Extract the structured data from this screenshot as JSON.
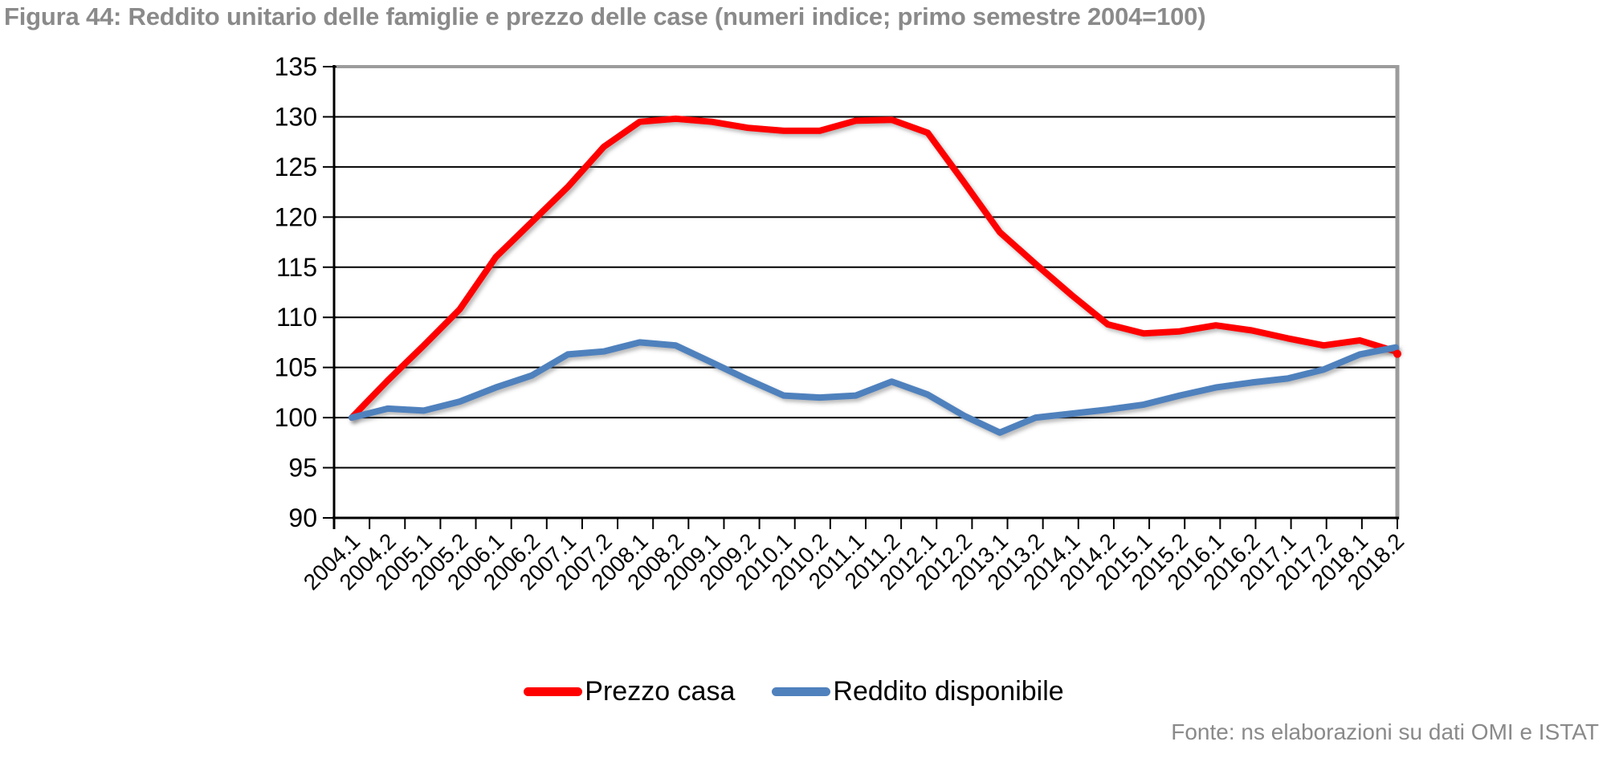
{
  "page": {
    "title": "Figura 44: Reddito unitario delle famiglie e prezzo delle case (numeri indice; primo semestre 2004=100)",
    "source_note": "Fonte: ns elaborazioni su dati OMI e ISTAT"
  },
  "chart_data": {
    "type": "line",
    "title": "Figura 44: Reddito unitario delle famiglie e prezzo delle case (numeri indice; primo semestre 2004=100)",
    "categories": [
      "2004.1",
      "2004.2",
      "2005.1",
      "2005.2",
      "2006.1",
      "2006.2",
      "2007.1",
      "2007.2",
      "2008.1",
      "2008.2",
      "2009.1",
      "2009.2",
      "2010.1",
      "2010.2",
      "2011.1",
      "2011.2",
      "2012.1",
      "2012.2",
      "2013.1",
      "2013.2",
      "2014.1",
      "2014.2",
      "2015.1",
      "2015.2",
      "2016.1",
      "2016.2",
      "2017.1",
      "2017.2",
      "2018.1",
      "2018.2"
    ],
    "series": [
      {
        "name": "Prezzo casa",
        "color": "#fe0000",
        "values": [
          100,
          103.7,
          107.2,
          110.8,
          116.0,
          119.5,
          123.0,
          127.0,
          129.5,
          129.8,
          129.5,
          128.9,
          128.6,
          128.6,
          129.6,
          129.7,
          128.4,
          123.5,
          118.5,
          115.3,
          112.2,
          109.3,
          108.4,
          108.6,
          109.2,
          108.7,
          107.9,
          107.2,
          107.7,
          106.6
        ]
      },
      {
        "name": "Reddito disponibile",
        "color": "#4f81bd",
        "values": [
          100,
          100.9,
          100.7,
          101.6,
          103.0,
          104.2,
          106.3,
          106.6,
          107.5,
          107.2,
          105.5,
          103.8,
          102.2,
          102.0,
          102.2,
          103.6,
          102.3,
          100.2,
          98.5,
          100.0,
          100.4,
          100.8,
          101.3,
          102.2,
          103.0,
          103.5,
          103.9,
          104.8,
          106.3,
          107.0
        ]
      }
    ],
    "ylim": [
      90,
      135
    ],
    "yticks": [
      90,
      95,
      100,
      105,
      110,
      115,
      120,
      125,
      130,
      135
    ],
    "ytick_step": 5,
    "grid": "horizontal-black",
    "legend_position": "bottom",
    "end_marker_series": "Prezzo casa",
    "axis_color": "#000000",
    "border_color": "#9c9c9c",
    "label_color": "#000000"
  }
}
